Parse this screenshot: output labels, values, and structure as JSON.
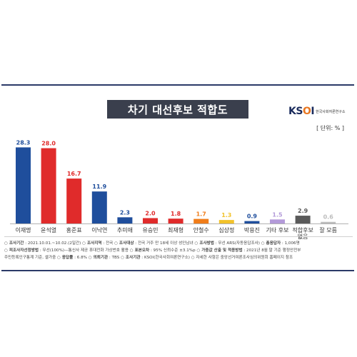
{
  "title": "차기 대선후보 적합도",
  "logo": {
    "mark_k": "K",
    "mark_s": "S",
    "mark_o": "O",
    "mark_i": "I",
    "text": "한국사회여론연구소"
  },
  "unit": "[ 단위: % ]",
  "colors": {
    "navy": "#1f4e9c",
    "red": "#e02b2b",
    "orange": "#f07d1a",
    "yellow": "#f2c22a",
    "purple": "#b39ad9",
    "gray": "#5a5a5a",
    "lightgray": "#bdbdbd"
  },
  "chart_data": {
    "type": "bar",
    "title": "차기 대선후보 적합도",
    "unit": "%",
    "categories": [
      "이재명",
      "윤석열",
      "홍준표",
      "이낙연",
      "추미애",
      "유승민",
      "최재형",
      "안철수",
      "심상정",
      "박용진",
      "기타 후보",
      "적합후보 없음",
      "잘 모름"
    ],
    "values": [
      28.3,
      28.0,
      16.7,
      11.9,
      2.3,
      2.0,
      1.8,
      1.7,
      1.3,
      0.9,
      1.5,
      2.9,
      0.6
    ],
    "value_labels": [
      "28.3",
      "28.0",
      "16.7",
      "11.9",
      "2.3",
      "2.0",
      "1.8",
      "1.7",
      "1.3",
      "0.9",
      "1.5",
      "2.9",
      "0.6"
    ],
    "bar_colors": [
      "#1f4e9c",
      "#e02b2b",
      "#e02b2b",
      "#1f4e9c",
      "#1f4e9c",
      "#e02b2b",
      "#e02b2b",
      "#f07d1a",
      "#f2c22a",
      "#1f4e9c",
      "#b39ad9",
      "#5a5a5a",
      "#bdbdbd"
    ],
    "label_colors": [
      "#1f4e9c",
      "#e02b2b",
      "#e02b2b",
      "#1f4e9c",
      "#1f4e9c",
      "#e02b2b",
      "#e02b2b",
      "#f07d1a",
      "#f2c22a",
      "#1f4e9c",
      "#b39ad9",
      "#5a5a5a",
      "#bdbdbd"
    ],
    "ylim": [
      0,
      30
    ]
  },
  "notes": [
    [
      {
        "k": "○ 조사기간",
        "v": " : 2021.10.01.~10.02.(2일간) "
      },
      {
        "k": "○ 조사지역",
        "v": " : 전국 "
      },
      {
        "k": "○ 조사대상",
        "v": " : 전국 거주 만 18세 이상 성인남녀 "
      },
      {
        "k": "○ 조사방법",
        "v": " : 무선 ARS(자동응답조사) "
      },
      {
        "k": "○ 총응답자",
        "v": " : 1,006명"
      }
    ],
    [
      {
        "k": "○ 피조사자선정방법",
        "v": " : 무선(100%)—통신사 제공 휴대전화 가상번호 활용 "
      },
      {
        "k": "○ 표본오차",
        "v": " : 95% 신뢰수준 ±3.1%p "
      },
      {
        "k": "○ 가중값 산출 및 적용방법",
        "v": " : 2021년 8월 말 기준 행정안전부"
      }
    ],
    [
      {
        "k": "",
        "v": "주민등록인구통계 기준, 셀가중 "
      },
      {
        "k": "○ 응답률",
        "v": " : 6.8% "
      },
      {
        "k": "○ 의뢰기관",
        "v": " : TBS "
      },
      {
        "k": "○ 조사기관",
        "v": " : KSOI(한국사회여론연구소) "
      },
      {
        "k": "",
        "v": "○ 자세한 사항은 중앙선거여론조사심의위원회 홈페이지 참조"
      }
    ]
  ]
}
